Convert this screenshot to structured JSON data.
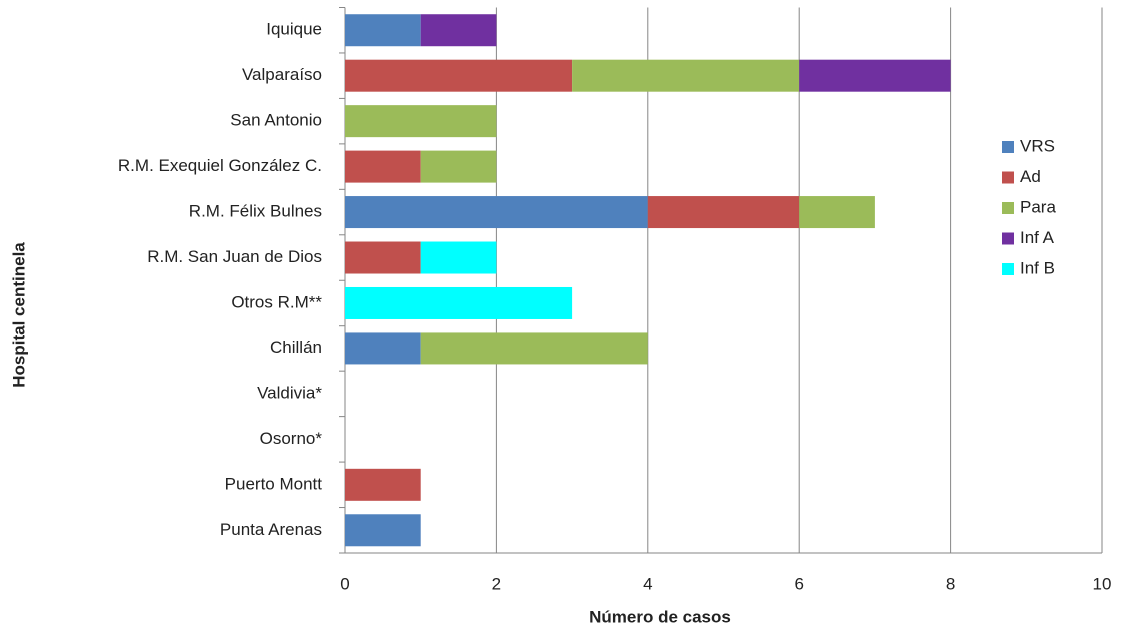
{
  "chart_data": {
    "type": "stacked-barh",
    "x_label": "Número de casos",
    "y_label": "Hospital centinela",
    "categories": [
      "Iquique",
      "Valparaíso",
      "San Antonio",
      "R.M. Exequiel González C.",
      "R.M. Félix Bulnes",
      "R.M. San Juan de Dios",
      "Otros R.M**",
      "Chillán",
      "Valdivia*",
      "Osorno*",
      "Puerto Montt",
      "Punta Arenas"
    ],
    "series": [
      {
        "name": "VRS",
        "color": "#4f81bd",
        "values": [
          1,
          0,
          0,
          0,
          4,
          0,
          0,
          1,
          0,
          0,
          0,
          1
        ]
      },
      {
        "name": "Ad",
        "color": "#c0504d",
        "values": [
          0,
          3,
          0,
          1,
          2,
          1,
          0,
          0,
          0,
          0,
          1,
          0
        ]
      },
      {
        "name": "Para",
        "color": "#9bbb59",
        "values": [
          0,
          3,
          2,
          1,
          1,
          0,
          0,
          3,
          0,
          0,
          0,
          0
        ]
      },
      {
        "name": "Inf A",
        "color": "#7030a0",
        "values": [
          1,
          2,
          0,
          0,
          0,
          0,
          0,
          0,
          0,
          0,
          0,
          0
        ]
      },
      {
        "name": "Inf B",
        "color": "#00ffff",
        "values": [
          0,
          0,
          0,
          0,
          0,
          1,
          3,
          0,
          0,
          0,
          0,
          0
        ]
      }
    ],
    "xlim": [
      0,
      10
    ],
    "xticks": [
      0,
      2,
      4,
      6,
      8,
      10
    ],
    "grid": true,
    "legend": "right"
  }
}
